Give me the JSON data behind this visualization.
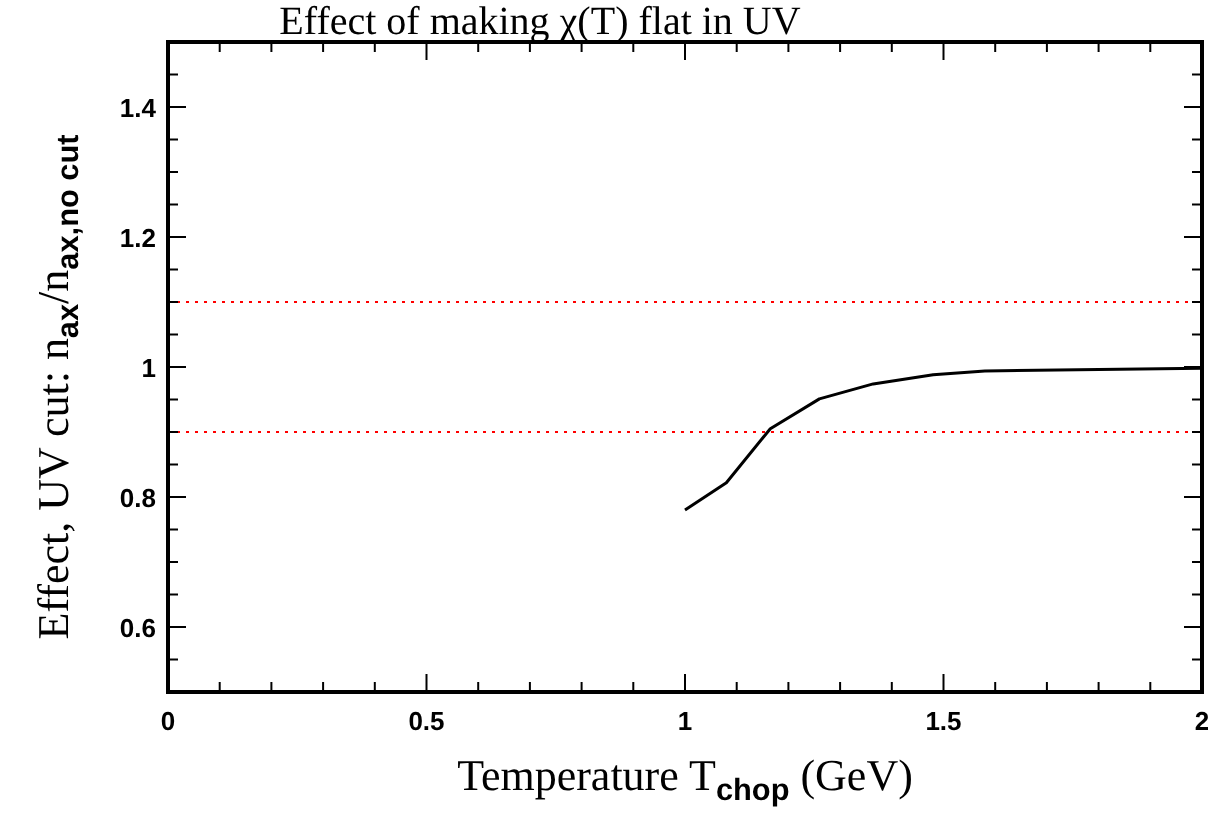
{
  "chart_data": {
    "type": "line",
    "title": "Effect of making χ(T) flat in UV",
    "xlabel": "Temperature T$_{chop}$ (GeV)",
    "ylabel": "Effect, UV cut: n$_{ax}$/n$_{ax,no cut}$",
    "xlim": [
      0,
      2
    ],
    "ylim": [
      0.5,
      1.5
    ],
    "xticks": [
      0,
      {
        "value": 0.1,
        "label": null
      },
      {
        "value": 0.2,
        "label": null
      },
      {
        "value": 0.3,
        "label": null
      },
      {
        "value": 0.4,
        "label": null
      },
      0.5,
      {
        "value": 0.6,
        "label": null
      },
      {
        "value": 0.7,
        "label": null
      },
      {
        "value": 0.8,
        "label": null
      },
      {
        "value": 0.9,
        "label": null
      },
      1,
      {
        "value": 1.1,
        "label": null
      },
      {
        "value": 1.2,
        "label": null
      },
      {
        "value": 1.3,
        "label": null
      },
      {
        "value": 1.4,
        "label": null
      },
      1.5,
      {
        "value": 1.6,
        "label": null
      },
      {
        "value": 1.7,
        "label": null
      },
      {
        "value": 1.8,
        "label": null
      },
      {
        "value": 1.9,
        "label": null
      },
      2
    ],
    "yticks": [
      {
        "value": 0.55,
        "label": null
      },
      0.6,
      {
        "value": 0.65,
        "label": null
      },
      {
        "value": 0.7,
        "label": null
      },
      {
        "value": 0.75,
        "label": null
      },
      0.8,
      {
        "value": 0.85,
        "label": null
      },
      {
        "value": 0.9,
        "label": null
      },
      {
        "value": 0.95,
        "label": null
      },
      1,
      {
        "value": 1.05,
        "label": null
      },
      {
        "value": 1.1,
        "label": null
      },
      {
        "value": 1.15,
        "label": null
      },
      1.2,
      {
        "value": 1.25,
        "label": null
      },
      {
        "value": 1.3,
        "label": null
      },
      {
        "value": 1.35,
        "label": null
      },
      1.4,
      {
        "value": 1.45,
        "label": null
      }
    ],
    "x": [
      1.0,
      1.08,
      1.165,
      1.26,
      1.364,
      1.48,
      1.58,
      2.0
    ],
    "series": [
      {
        "color": "#000000",
        "values": [
          0.78,
          0.822,
          0.905,
          0.951,
          0.974,
          0.988,
          0.994,
          0.998
        ]
      }
    ],
    "ref_lines": [
      {
        "axis": "y",
        "value": 1.1,
        "color": "#ff0000",
        "line_style": "dotted"
      },
      {
        "axis": "y",
        "value": 0.9,
        "color": "#ff0000",
        "line_style": "dotted"
      }
    ],
    "grid": false,
    "marker": "none",
    "line_style": "solid"
  }
}
